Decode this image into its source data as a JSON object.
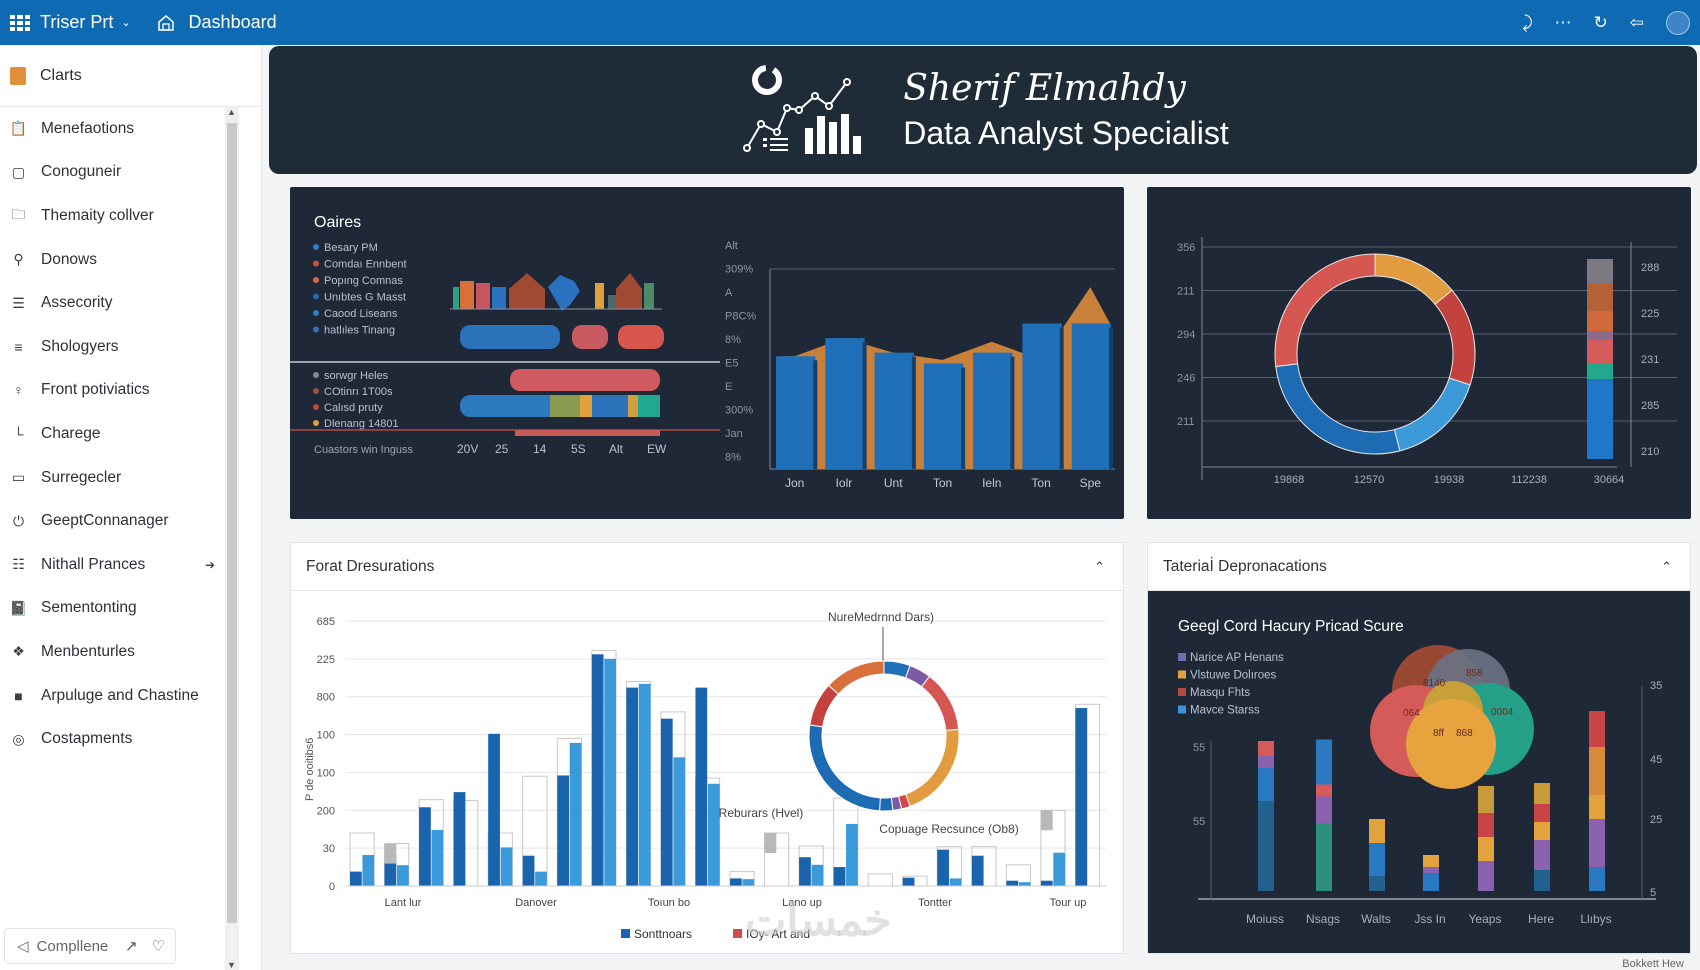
{
  "topbar": {
    "app_title": "Triser Prt",
    "page_title": "Dashboard",
    "icons": [
      "grid-icon",
      "chevron-down-icon",
      "home-icon",
      "share-icon",
      "more-icon",
      "refresh-icon",
      "back-icon",
      "avatar"
    ]
  },
  "sidebar": {
    "header": "Clarts",
    "items": [
      {
        "label": "Menefaotions",
        "icon": "clipboard-icon"
      },
      {
        "label": "Conoguneir",
        "icon": "square-icon"
      },
      {
        "label": "Themaity collver",
        "icon": "folder-icon"
      },
      {
        "label": "Donows",
        "icon": "search-icon"
      },
      {
        "label": "Assecority",
        "icon": "list-icon"
      },
      {
        "label": "Shologyers",
        "icon": "menu-icon"
      },
      {
        "label": "Front potiviatics",
        "icon": "user-icon"
      },
      {
        "label": "Charege",
        "icon": "chart-icon"
      },
      {
        "label": "Surregecler",
        "icon": "monitor-icon"
      },
      {
        "label": "GeeptConnanager",
        "icon": "power-icon"
      },
      {
        "label": "Nithall Prances",
        "icon": "document-icon"
      },
      {
        "label": "Sementonting",
        "icon": "book-icon"
      },
      {
        "label": "Menbenturles",
        "icon": "puzzle-icon"
      },
      {
        "label": "Arpuluge and Chastine",
        "icon": "block-icon"
      },
      {
        "label": "Costapments",
        "icon": "globe-icon"
      }
    ],
    "footer_label": "Compllene"
  },
  "banner": {
    "name": "Sherif Elmahdy",
    "role": "Data Analyst Specialist"
  },
  "panel1": {
    "title": "Oaires",
    "legend_top": [
      {
        "label": "Besary PM",
        "color": "#2f7fc8"
      },
      {
        "label": "Comdaı Ennbent",
        "color": "#c8533f"
      },
      {
        "label": "Popıng Comnas",
        "color": "#d96446"
      },
      {
        "label": "Unıbtes G Masst",
        "color": "#2a66a8"
      },
      {
        "label": "Caood Liseans",
        "color": "#2f7fc8"
      },
      {
        "label": "hatlıles Tinang",
        "color": "#3a6fb0"
      }
    ],
    "legend_bottom": [
      {
        "label": "sorwgr Heles",
        "color": "#888888"
      },
      {
        "label": "COtinrı 1T00s",
        "color": "#a0523f"
      },
      {
        "label": "Calısd pruty",
        "color": "#c0483a"
      },
      {
        "label": "Dlenang 14801",
        "color": "#e0a040"
      }
    ],
    "footer_label": "Cuastors win Inguss",
    "footer_ticks": [
      "20V",
      "25",
      "14",
      "5S",
      "Alt",
      "EW"
    ]
  },
  "chart_data": [
    {
      "type": "bar",
      "title": "Oaires",
      "categories": [
        "Jon",
        "Iolr",
        "Unt",
        "Ton",
        "Ieln",
        "Ton",
        "Spe"
      ],
      "y_tick_labels": [
        "Alt",
        "309%",
        "A",
        "P8C%",
        "8%",
        "E5",
        "E",
        "300%",
        "Jan",
        "8%"
      ],
      "series": [
        {
          "name": "bars",
          "values": [
            62,
            72,
            64,
            58,
            64,
            80,
            80
          ],
          "color": "#1f6fb9"
        },
        {
          "name": "overlay",
          "values": [
            62,
            72,
            64,
            60,
            70,
            60,
            100
          ],
          "color": "#d2863a"
        }
      ],
      "ylim": [
        0,
        110
      ]
    },
    {
      "type": "pie",
      "title": "",
      "labels": [
        "Red",
        "Orange",
        "Dark red",
        "Light blue",
        "Blue"
      ],
      "values": [
        27,
        14,
        16,
        16,
        27
      ],
      "colors": [
        "#d65752",
        "#e29b3e",
        "#c4423e",
        "#3c9ad8",
        "#1d6bb3"
      ],
      "y_tick_labels": [
        "356",
        "211",
        "294",
        "246",
        "211"
      ],
      "x_tick_labels": [
        "19868",
        "12570",
        "19938",
        "112238",
        "30664"
      ],
      "right_tick_labels": [
        "288",
        "225",
        "231",
        "285",
        "210"
      ],
      "stacked_bar": {
        "segments": [
          {
            "color": "#7a7a80",
            "value": 12
          },
          {
            "color": "#b5623a",
            "value": 14
          },
          {
            "color": "#d06a3a",
            "value": 10
          },
          {
            "color": "#8b6a8a",
            "value": 4
          },
          {
            "color": "#d55a5a",
            "value": 12
          },
          {
            "color": "#23a88e",
            "value": 8
          },
          {
            "color": "#1f78c7",
            "value": 40
          }
        ]
      }
    },
    {
      "type": "bar",
      "title": "Forat Dresurations",
      "ylabel": "P de ooitibs6",
      "y_tick_labels": [
        "685",
        "225",
        "800",
        "100",
        "100",
        "200",
        "30",
        "0"
      ],
      "ylim": [
        0,
        700
      ],
      "categories": [
        "Lant lur",
        "Danover",
        "Toıun bo",
        "Lano up",
        "Tontter",
        "Tour up"
      ],
      "groups": [
        {
          "dark": 38,
          "light": 82,
          "ghost": 140
        },
        {
          "dark": 83,
          "light": 55,
          "ghost": 112
        },
        {
          "dark": 208,
          "light": 148,
          "ghost": 228
        },
        {
          "dark": 248,
          "light": 0,
          "ghost": 226
        },
        {
          "dark": 402,
          "light": 102,
          "ghost": 140
        },
        {
          "dark": 80,
          "light": 38,
          "ghost": 290
        },
        {
          "dark": 292,
          "light": 378,
          "ghost": 390
        },
        {
          "dark": 612,
          "light": 600,
          "ghost": 622
        },
        {
          "dark": 524,
          "light": 534,
          "ghost": 540
        },
        {
          "dark": 442,
          "light": 340,
          "ghost": 460
        },
        {
          "dark": 524,
          "light": 270,
          "ghost": 285
        },
        {
          "dark": 20,
          "light": 18,
          "ghost": 38
        },
        {
          "dark": 0,
          "light": 0,
          "ghost": 140
        },
        {
          "dark": 76,
          "light": 56,
          "ghost": 106
        },
        {
          "dark": 50,
          "light": 164,
          "ghost": 232
        },
        {
          "dark": 0,
          "light": 0,
          "ghost": 32
        },
        {
          "dark": 22,
          "light": 0,
          "ghost": 26
        },
        {
          "dark": 96,
          "light": 20,
          "ghost": 104
        },
        {
          "dark": 80,
          "light": 0,
          "ghost": 104
        },
        {
          "dark": 14,
          "light": 10,
          "ghost": 56
        },
        {
          "dark": 14,
          "light": 88,
          "ghost": 200
        },
        {
          "dark": 470,
          "light": 0,
          "ghost": 480
        }
      ],
      "series": [
        {
          "name": "Sonttnoars",
          "color": "#1a64ad"
        },
        {
          "name": "IOy- Art and",
          "color": "#d24b4b"
        }
      ],
      "annotations": [
        "NureMedrnnd Dars)",
        "Reburars (Hvel)",
        "Copuage Recsunce (Ob8)"
      ],
      "donut": {
        "values": [
          6,
          5,
          14,
          22,
          2,
          2,
          3,
          28,
          10,
          14
        ],
        "colors": [
          "#1f6fb9",
          "#7b5aa6",
          "#d65752",
          "#e29b3e",
          "#d6454a",
          "#7b5aa6",
          "#1d6bb3",
          "#1d6bb3",
          "#c4423e",
          "#d96f3a"
        ]
      }
    },
    {
      "type": "bar",
      "title": "Geegl Cord Hacury Pricad Scure",
      "legend": [
        {
          "label": "Narice AP Henans",
          "color": "#6a6fb4"
        },
        {
          "label": "Vlstuwe Dolıroes",
          "color": "#e2a33c"
        },
        {
          "label": "Masqu Fhts",
          "color": "#b4483a"
        },
        {
          "label": "Mavce Starss",
          "color": "#3d95d8"
        }
      ],
      "venn_labels": [
        "8140",
        "858",
        "064",
        "0004",
        "8ff",
        "868"
      ],
      "left_ticks": [
        "55",
        "55"
      ],
      "right_ticks": [
        "35",
        "45",
        "25",
        "5"
      ],
      "categories": [
        "Moiuss",
        "Nsags",
        "Walts",
        "Jss In",
        "Yeaps",
        "Here",
        "Llıbys"
      ],
      "stacks": [
        [
          {
            "c": "#23618f",
            "v": 60
          },
          {
            "c": "#2b78c2",
            "v": 22
          },
          {
            "c": "#8a62b0",
            "v": 8
          },
          {
            "c": "#d55a5a",
            "v": 10
          }
        ],
        [
          {
            "c": "#2b8f7a",
            "v": 45
          },
          {
            "c": "#8a62b0",
            "v": 18
          },
          {
            "c": "#d55a5a",
            "v": 8
          },
          {
            "c": "#2b78c2",
            "v": 30
          }
        ],
        [
          {
            "c": "#23618f",
            "v": 10
          },
          {
            "c": "#2b78c2",
            "v": 22
          },
          {
            "c": "#e2a33c",
            "v": 16
          }
        ],
        [
          {
            "c": "#2b78c2",
            "v": 12
          },
          {
            "c": "#8a62b0",
            "v": 4
          },
          {
            "c": "#e2a33c",
            "v": 8
          }
        ],
        [
          {
            "c": "#8a62b0",
            "v": 20
          },
          {
            "c": "#e2a33c",
            "v": 16
          },
          {
            "c": "#c94444",
            "v": 16
          },
          {
            "c": "#c89a3a",
            "v": 18
          }
        ],
        [
          {
            "c": "#23618f",
            "v": 14
          },
          {
            "c": "#8a62b0",
            "v": 20
          },
          {
            "c": "#e2a33c",
            "v": 12
          },
          {
            "c": "#c94444",
            "v": 12
          },
          {
            "c": "#c89a3a",
            "v": 14
          }
        ],
        [
          {
            "c": "#2b78c2",
            "v": 16
          },
          {
            "c": "#8a62b0",
            "v": 32
          },
          {
            "c": "#e2a33c",
            "v": 16
          },
          {
            "c": "#d88a3a",
            "v": 32
          },
          {
            "c": "#c94444",
            "v": 24
          }
        ]
      ],
      "ylim": [
        0,
        140
      ]
    }
  ],
  "panel3": {
    "title": "Forat Dresurations"
  },
  "panel4": {
    "title": "Tateriaİ Depronacations",
    "subtitle": "Geegl Cord Hacury Pricad Scure"
  },
  "footer": {
    "watermark": "خمسات",
    "link": "Bokkett Hew"
  }
}
